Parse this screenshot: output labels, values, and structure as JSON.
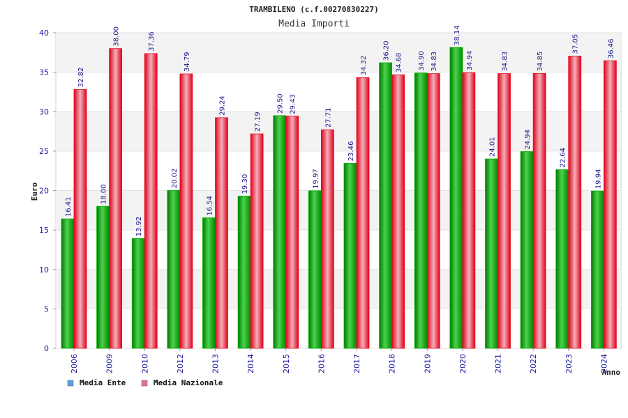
{
  "chart_data": {
    "type": "bar",
    "title": "TRAMBILENO (c.f.00270830227)",
    "subtitle": "Media Importi",
    "xlabel": "Anno",
    "ylabel": "Euro",
    "ylim": [
      0,
      40
    ],
    "yticks": [
      0,
      5,
      10,
      15,
      20,
      25,
      30,
      35,
      40
    ],
    "grid": "horizontal-bands",
    "legend_position": "bottom-left",
    "categories": [
      "2006",
      "2009",
      "2010",
      "2012",
      "2013",
      "2014",
      "2015",
      "2016",
      "2017",
      "2018",
      "2019",
      "2020",
      "2021",
      "2022",
      "2023",
      "2024"
    ],
    "series": [
      {
        "name": "Media Ente",
        "color": "#00b000",
        "legend_color": "#5aa0e8",
        "values": [
          16.41,
          18.0,
          13.92,
          20.02,
          16.54,
          19.3,
          29.5,
          19.97,
          23.46,
          36.2,
          34.9,
          38.14,
          24.01,
          24.94,
          22.64,
          19.94
        ],
        "labels": [
          "16.41",
          "18.00",
          "13.92",
          "20.02",
          "16.54",
          "19.30",
          "29.50",
          "19.97",
          "23.46",
          "36.20",
          "34.90",
          "38.14",
          "24.01",
          "24.94",
          "22.64",
          "19.94"
        ]
      },
      {
        "name": "Media Nazionale",
        "color": "#e8102a",
        "legend_color": "#e070a0",
        "values": [
          32.82,
          38.0,
          37.36,
          34.79,
          29.24,
          27.19,
          29.43,
          27.71,
          34.32,
          34.68,
          34.83,
          34.94,
          34.83,
          34.85,
          37.05,
          36.46
        ],
        "labels": [
          "32.82",
          "38.00",
          "37.36",
          "34.79",
          "29.24",
          "27.19",
          "29.43",
          "27.71",
          "34.32",
          "34.68",
          "34.83",
          "34.94",
          "34.83",
          "34.85",
          "37.05",
          "36.46"
        ]
      }
    ]
  }
}
